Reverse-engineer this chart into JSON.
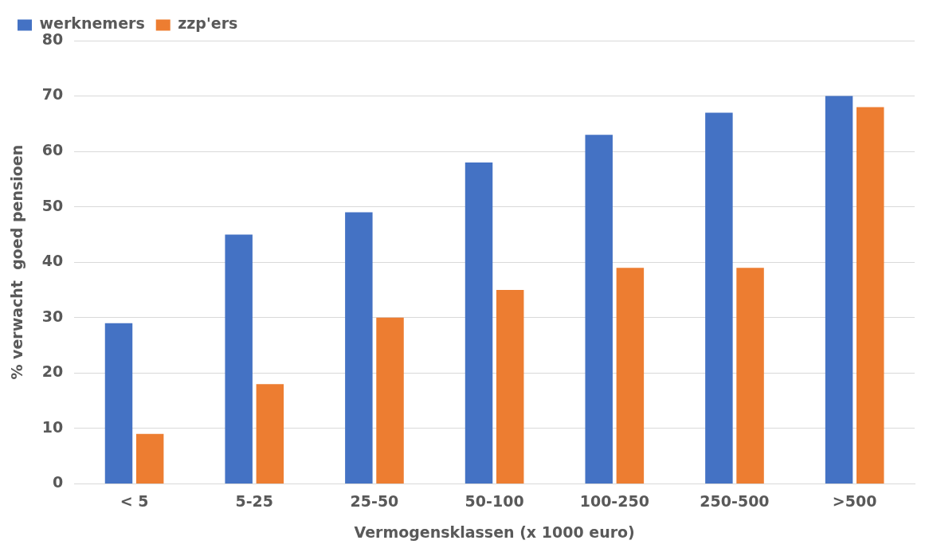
{
  "chart_data": {
    "type": "bar",
    "xlabel": "Vermogensklassen (x 1000 euro)",
    "ylabel": "% verwacht  goed pensioen",
    "categories": [
      "< 5",
      "5-25",
      "25-50",
      "50-100",
      "100-250",
      "250-500",
      ">500"
    ],
    "series": [
      {
        "name": "werknemers",
        "color": "#4472c4",
        "values": [
          29,
          45,
          49,
          58,
          63,
          67,
          70
        ]
      },
      {
        "name": "zzp'ers",
        "color": "#ed7d31",
        "values": [
          9,
          18,
          30,
          35,
          39,
          39,
          68
        ]
      }
    ],
    "ylim": [
      0,
      80
    ],
    "yticks": [
      0,
      10,
      20,
      30,
      40,
      50,
      60,
      70,
      80
    ],
    "grid": "y",
    "legend": "top left"
  }
}
